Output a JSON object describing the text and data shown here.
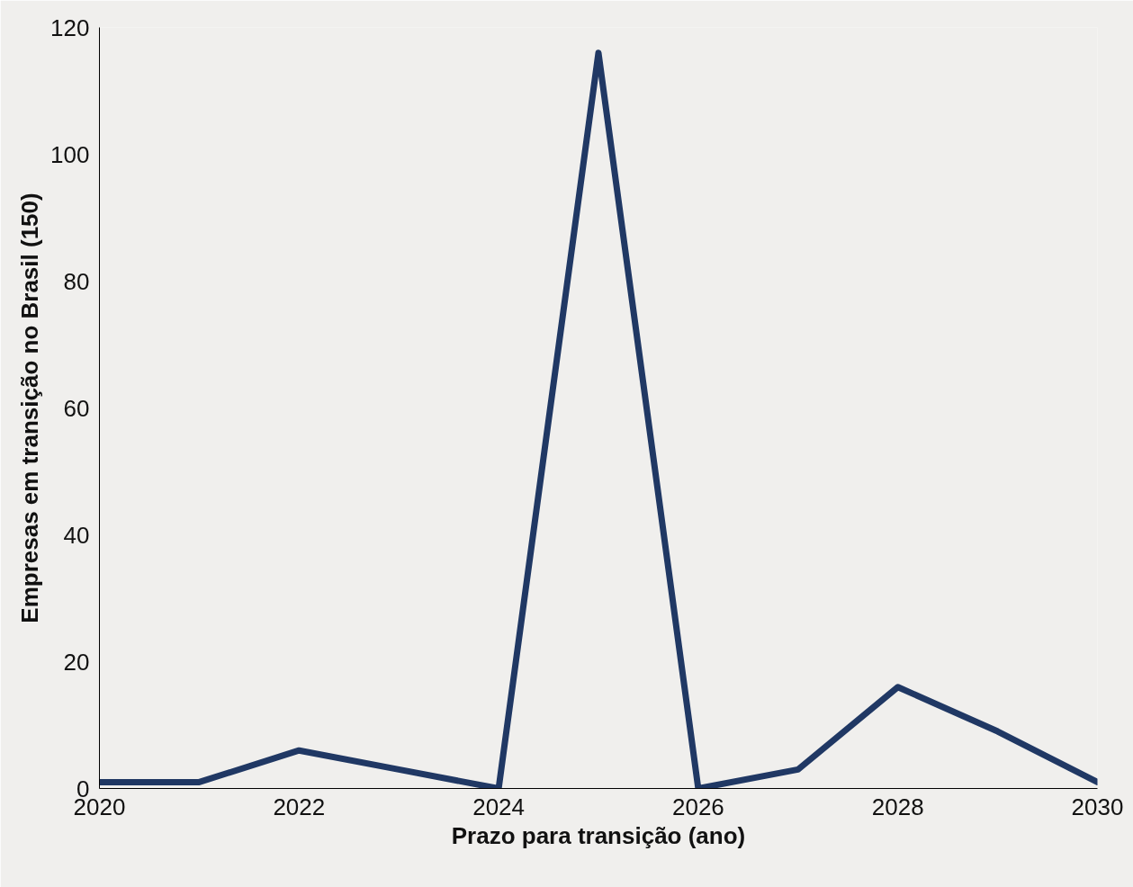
{
  "chart_data": {
    "type": "line",
    "xlabel": "Prazo para transição (ano)",
    "ylabel": "Empresas em transição no Brasil (150)",
    "x": [
      2020,
      2021,
      2022,
      2023,
      2024,
      2025,
      2026,
      2027,
      2028,
      2029,
      2030
    ],
    "series": [
      {
        "color": "#203864",
        "values": [
          1,
          1,
          6,
          3,
          0,
          116,
          0,
          3,
          16,
          9,
          1
        ]
      }
    ],
    "xlim": [
      2020,
      2030
    ],
    "ylim": [
      0,
      120
    ],
    "xticks": [
      2020,
      2022,
      2024,
      2026,
      2028,
      2030
    ],
    "yticks": [
      0,
      20,
      40,
      60,
      80,
      100,
      120
    ],
    "grid": false,
    "marker": "none",
    "line_style": "solid"
  }
}
